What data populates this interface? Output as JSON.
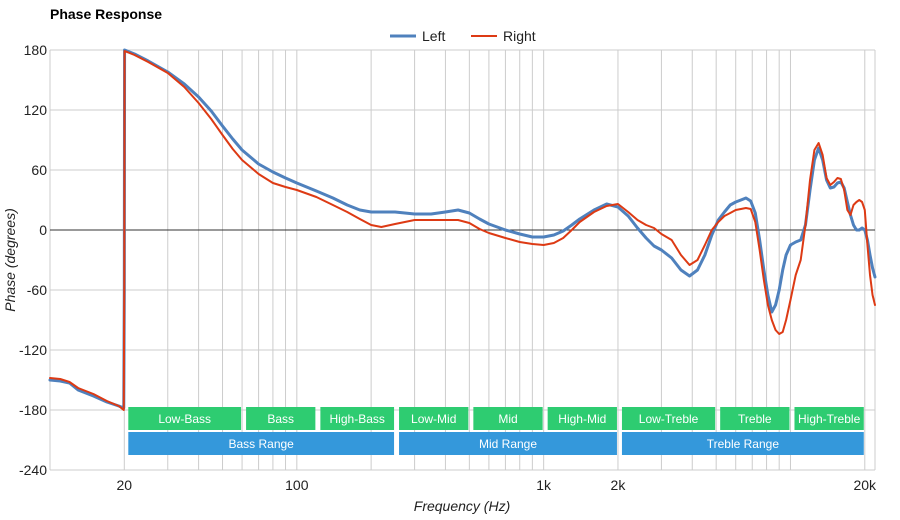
{
  "chart_data": {
    "type": "line",
    "title": "Phase Response",
    "xlabel": "Frequency (Hz)",
    "ylabel": "Phase (degrees)",
    "xscale": "log",
    "xlim": [
      10,
      22000
    ],
    "ylim": [
      -240,
      180
    ],
    "x_ticks": [
      {
        "value": 20,
        "label": "20"
      },
      {
        "value": 100,
        "label": "100"
      },
      {
        "value": 1000,
        "label": "1k"
      },
      {
        "value": 2000,
        "label": "2k"
      },
      {
        "value": 20000,
        "label": "20k"
      }
    ],
    "y_ticks": [
      {
        "value": 180,
        "label": "180"
      },
      {
        "value": 120,
        "label": "120"
      },
      {
        "value": 60,
        "label": "60"
      },
      {
        "value": 0,
        "label": "0"
      },
      {
        "value": -60,
        "label": "-60"
      },
      {
        "value": -120,
        "label": "-120"
      },
      {
        "value": -180,
        "label": "-180"
      },
      {
        "value": -240,
        "label": "-240"
      }
    ],
    "grid": true,
    "legend_position": "top-center",
    "series": [
      {
        "name": "Left",
        "color": "#4f81bd",
        "points": [
          [
            10,
            -150
          ],
          [
            11,
            -151
          ],
          [
            12,
            -153
          ],
          [
            13,
            -160
          ],
          [
            15,
            -166
          ],
          [
            17,
            -172
          ],
          [
            19,
            -176
          ],
          [
            19.9,
            -178
          ],
          [
            20,
            -60
          ],
          [
            20.05,
            180
          ],
          [
            22,
            176
          ],
          [
            25,
            169
          ],
          [
            30,
            158
          ],
          [
            35,
            146
          ],
          [
            40,
            133
          ],
          [
            45,
            119
          ],
          [
            50,
            104
          ],
          [
            55,
            91
          ],
          [
            60,
            80
          ],
          [
            70,
            66
          ],
          [
            80,
            58
          ],
          [
            90,
            52
          ],
          [
            100,
            47
          ],
          [
            120,
            39
          ],
          [
            140,
            32
          ],
          [
            160,
            25
          ],
          [
            180,
            20
          ],
          [
            200,
            18
          ],
          [
            250,
            18
          ],
          [
            300,
            16
          ],
          [
            350,
            16
          ],
          [
            400,
            18
          ],
          [
            450,
            20
          ],
          [
            500,
            17
          ],
          [
            550,
            11
          ],
          [
            600,
            6
          ],
          [
            700,
            0
          ],
          [
            800,
            -4
          ],
          [
            900,
            -7
          ],
          [
            1000,
            -7
          ],
          [
            1100,
            -5
          ],
          [
            1200,
            -1
          ],
          [
            1300,
            5
          ],
          [
            1400,
            11
          ],
          [
            1600,
            20
          ],
          [
            1800,
            26
          ],
          [
            2000,
            23
          ],
          [
            2200,
            14
          ],
          [
            2400,
            2
          ],
          [
            2600,
            -8
          ],
          [
            2800,
            -16
          ],
          [
            3000,
            -20
          ],
          [
            3300,
            -28
          ],
          [
            3600,
            -40
          ],
          [
            3900,
            -46
          ],
          [
            4200,
            -40
          ],
          [
            4500,
            -25
          ],
          [
            4800,
            -5
          ],
          [
            5100,
            10
          ],
          [
            5400,
            18
          ],
          [
            5700,
            25
          ],
          [
            6000,
            28
          ],
          [
            6300,
            30
          ],
          [
            6600,
            32
          ],
          [
            6900,
            29
          ],
          [
            7200,
            17
          ],
          [
            7500,
            -10
          ],
          [
            7800,
            -40
          ],
          [
            8100,
            -65
          ],
          [
            8400,
            -82
          ],
          [
            8700,
            -75
          ],
          [
            9000,
            -60
          ],
          [
            9300,
            -40
          ],
          [
            9600,
            -25
          ],
          [
            10000,
            -15
          ],
          [
            10500,
            -12
          ],
          [
            11000,
            -10
          ],
          [
            11500,
            5
          ],
          [
            12000,
            40
          ],
          [
            12500,
            70
          ],
          [
            13000,
            82
          ],
          [
            13500,
            70
          ],
          [
            14000,
            50
          ],
          [
            14500,
            42
          ],
          [
            15000,
            43
          ],
          [
            15500,
            47
          ],
          [
            16000,
            48
          ],
          [
            16500,
            42
          ],
          [
            17000,
            28
          ],
          [
            17500,
            15
          ],
          [
            18000,
            5
          ],
          [
            18500,
            0
          ],
          [
            19000,
            0
          ],
          [
            19500,
            2
          ],
          [
            20000,
            0
          ],
          [
            20500,
            -10
          ],
          [
            21000,
            -25
          ],
          [
            21500,
            -38
          ],
          [
            22000,
            -47
          ]
        ]
      },
      {
        "name": "Right",
        "color": "#dd3a14",
        "points": [
          [
            10,
            -148
          ],
          [
            11,
            -149
          ],
          [
            12,
            -152
          ],
          [
            13,
            -158
          ],
          [
            15,
            -164
          ],
          [
            17,
            -171
          ],
          [
            19,
            -176
          ],
          [
            19.9,
            -180
          ],
          [
            20,
            -50
          ],
          [
            20.05,
            179
          ],
          [
            22,
            175
          ],
          [
            25,
            168
          ],
          [
            30,
            157
          ],
          [
            35,
            143
          ],
          [
            40,
            127
          ],
          [
            45,
            111
          ],
          [
            50,
            95
          ],
          [
            55,
            81
          ],
          [
            60,
            70
          ],
          [
            70,
            56
          ],
          [
            80,
            47
          ],
          [
            90,
            43
          ],
          [
            100,
            40
          ],
          [
            120,
            33
          ],
          [
            140,
            25
          ],
          [
            160,
            18
          ],
          [
            180,
            11
          ],
          [
            200,
            5
          ],
          [
            220,
            3
          ],
          [
            250,
            6
          ],
          [
            300,
            10
          ],
          [
            350,
            10
          ],
          [
            400,
            10
          ],
          [
            450,
            10
          ],
          [
            500,
            7
          ],
          [
            550,
            1
          ],
          [
            600,
            -3
          ],
          [
            700,
            -8
          ],
          [
            800,
            -12
          ],
          [
            900,
            -14
          ],
          [
            1000,
            -15
          ],
          [
            1100,
            -13
          ],
          [
            1200,
            -8
          ],
          [
            1300,
            0
          ],
          [
            1400,
            8
          ],
          [
            1600,
            18
          ],
          [
            1800,
            24
          ],
          [
            2000,
            26
          ],
          [
            2200,
            18
          ],
          [
            2400,
            10
          ],
          [
            2600,
            5
          ],
          [
            2800,
            2
          ],
          [
            3000,
            -4
          ],
          [
            3300,
            -10
          ],
          [
            3600,
            -25
          ],
          [
            3900,
            -35
          ],
          [
            4200,
            -30
          ],
          [
            4500,
            -15
          ],
          [
            4800,
            0
          ],
          [
            5100,
            8
          ],
          [
            5400,
            14
          ],
          [
            5700,
            17
          ],
          [
            6000,
            20
          ],
          [
            6300,
            21
          ],
          [
            6600,
            22
          ],
          [
            6900,
            21
          ],
          [
            7200,
            8
          ],
          [
            7500,
            -20
          ],
          [
            7800,
            -50
          ],
          [
            8100,
            -75
          ],
          [
            8400,
            -90
          ],
          [
            8700,
            -100
          ],
          [
            9000,
            -104
          ],
          [
            9300,
            -102
          ],
          [
            9600,
            -90
          ],
          [
            10000,
            -70
          ],
          [
            10500,
            -45
          ],
          [
            11000,
            -30
          ],
          [
            11500,
            5
          ],
          [
            12000,
            50
          ],
          [
            12500,
            80
          ],
          [
            13000,
            87
          ],
          [
            13500,
            75
          ],
          [
            14000,
            52
          ],
          [
            14500,
            45
          ],
          [
            15000,
            48
          ],
          [
            15500,
            52
          ],
          [
            16000,
            51
          ],
          [
            16500,
            40
          ],
          [
            17000,
            20
          ],
          [
            17500,
            15
          ],
          [
            18000,
            25
          ],
          [
            18500,
            28
          ],
          [
            19000,
            30
          ],
          [
            19500,
            28
          ],
          [
            20000,
            20
          ],
          [
            20500,
            -15
          ],
          [
            21000,
            -45
          ],
          [
            21500,
            -65
          ],
          [
            22000,
            -75
          ]
        ]
      }
    ],
    "bands": [
      {
        "row": 1,
        "label": "Low-Bass",
        "from": 20,
        "to": 60,
        "color": "#2ecc71"
      },
      {
        "row": 1,
        "label": "Bass",
        "from": 60,
        "to": 120,
        "color": "#2ecc71"
      },
      {
        "row": 1,
        "label": "High-Bass",
        "from": 120,
        "to": 250,
        "color": "#2ecc71"
      },
      {
        "row": 1,
        "label": "Low-Mid",
        "from": 250,
        "to": 500,
        "color": "#2ecc71"
      },
      {
        "row": 1,
        "label": "Mid",
        "from": 500,
        "to": 1000,
        "color": "#2ecc71"
      },
      {
        "row": 1,
        "label": "High-Mid",
        "from": 1000,
        "to": 2000,
        "color": "#2ecc71"
      },
      {
        "row": 1,
        "label": "Low-Treble",
        "from": 2000,
        "to": 5000,
        "color": "#2ecc71"
      },
      {
        "row": 1,
        "label": "Treble",
        "from": 5000,
        "to": 10000,
        "color": "#2ecc71"
      },
      {
        "row": 1,
        "label": "High-Treble",
        "from": 10000,
        "to": 20000,
        "color": "#2ecc71"
      },
      {
        "row": 2,
        "label": "Bass Range",
        "from": 20,
        "to": 250,
        "color": "#3498db"
      },
      {
        "row": 2,
        "label": "Mid Range",
        "from": 250,
        "to": 2000,
        "color": "#3498db"
      },
      {
        "row": 2,
        "label": "Treble Range",
        "from": 2000,
        "to": 20000,
        "color": "#3498db"
      }
    ]
  }
}
